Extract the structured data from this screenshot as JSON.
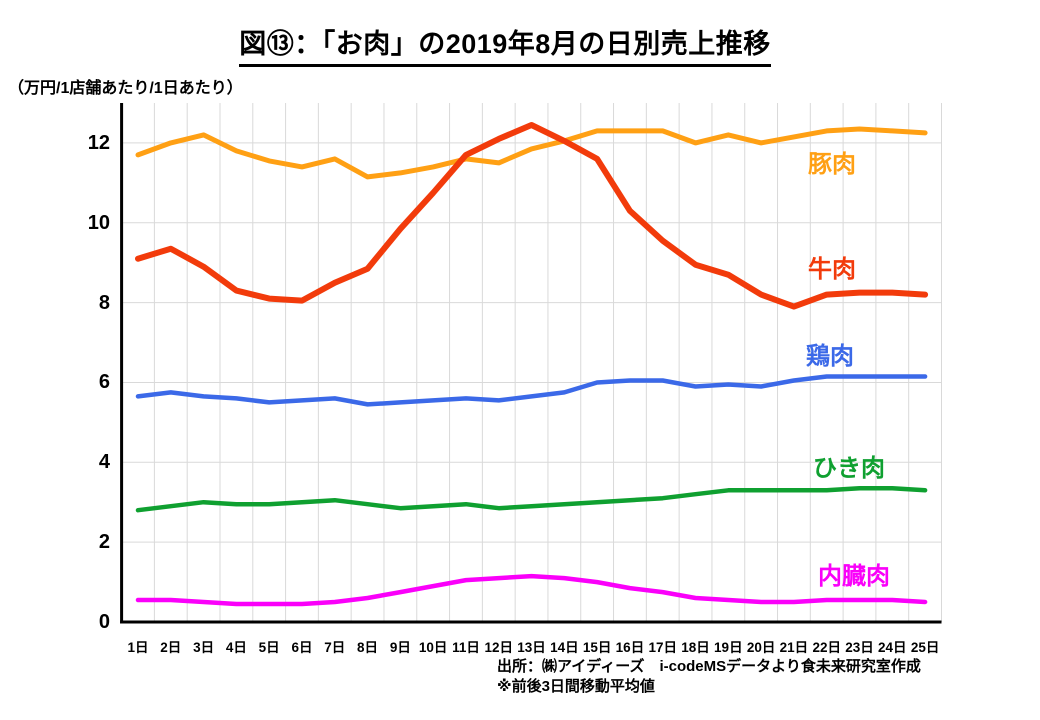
{
  "page": {
    "title": "図⑬：「お肉」の2019年8月の日別売上推移",
    "unit_label": "（万円/1店舗あたり/1日あたり）",
    "source_line1": "出所：㈱アイディーズ　i-codeMSデータより食未来研究室作成",
    "source_line2": "※前後3日間移動平均値"
  },
  "colors": {
    "grid": "#D9D9D9",
    "axis": "#000000",
    "text": "#000000",
    "background": "#FFFFFF"
  },
  "chart_data": {
    "type": "line",
    "title": "図⑬：「お肉」の2019年8月の日別売上推移",
    "ylabel": "（万円/1店舗あたり/1日あたり）",
    "categories": [
      "1日",
      "2日",
      "3日",
      "4日",
      "5日",
      "6日",
      "7日",
      "8日",
      "9日",
      "10日",
      "11日",
      "12日",
      "13日",
      "14日",
      "15日",
      "16日",
      "17日",
      "18日",
      "19日",
      "20日",
      "21日",
      "22日",
      "23日",
      "24日",
      "25日"
    ],
    "series": [
      {
        "key": "pork",
        "name": "豚肉",
        "color": "#FFA014",
        "values": [
          11.7,
          12.0,
          12.2,
          11.8,
          11.55,
          11.4,
          11.6,
          11.15,
          11.25,
          11.4,
          11.6,
          11.5,
          11.85,
          12.05,
          12.3,
          12.3,
          12.3,
          12.0,
          12.2,
          12.0,
          12.15,
          12.3,
          12.35,
          12.3,
          12.25
        ]
      },
      {
        "key": "beef",
        "name": "牛肉",
        "color": "#F23B0B",
        "values": [
          9.1,
          9.35,
          8.9,
          8.3,
          8.1,
          8.05,
          8.5,
          8.85,
          9.85,
          10.75,
          11.7,
          12.1,
          12.45,
          12.05,
          11.6,
          10.3,
          9.55,
          8.95,
          8.7,
          8.2,
          7.9,
          8.2,
          8.25,
          8.25,
          8.2
        ]
      },
      {
        "key": "chicken",
        "name": "鶏肉",
        "color": "#3B69E8",
        "values": [
          5.65,
          5.75,
          5.65,
          5.6,
          5.5,
          5.55,
          5.6,
          5.45,
          5.5,
          5.55,
          5.6,
          5.55,
          5.65,
          5.75,
          6.0,
          6.05,
          6.05,
          5.9,
          5.95,
          5.9,
          6.05,
          6.15,
          6.15,
          6.15,
          6.15
        ]
      },
      {
        "key": "ground-meat",
        "name": "ひき肉",
        "color": "#0FA030",
        "values": [
          2.8,
          2.9,
          3.0,
          2.95,
          2.95,
          3.0,
          3.05,
          2.95,
          2.85,
          2.9,
          2.95,
          2.85,
          2.9,
          2.95,
          3.0,
          3.05,
          3.1,
          3.2,
          3.3,
          3.3,
          3.3,
          3.3,
          3.35,
          3.35,
          3.3
        ]
      },
      {
        "key": "offal",
        "name": "内臓肉",
        "color": "#FA00FA",
        "values": [
          0.55,
          0.55,
          0.5,
          0.45,
          0.45,
          0.45,
          0.5,
          0.6,
          0.75,
          0.9,
          1.05,
          1.1,
          1.15,
          1.1,
          1.0,
          0.85,
          0.75,
          0.6,
          0.55,
          0.5,
          0.5,
          0.55,
          0.55,
          0.55,
          0.5
        ]
      }
    ],
    "ylim": [
      0,
      13
    ],
    "yticks": [
      0,
      2,
      4,
      6,
      8,
      10,
      12
    ],
    "grid": true,
    "legend_position": "inline-right",
    "source_note": "出所：㈱アイディーズ　i-codeMSデータより食未来研究室作成",
    "footnote": "※前後3日間移動平均値"
  }
}
